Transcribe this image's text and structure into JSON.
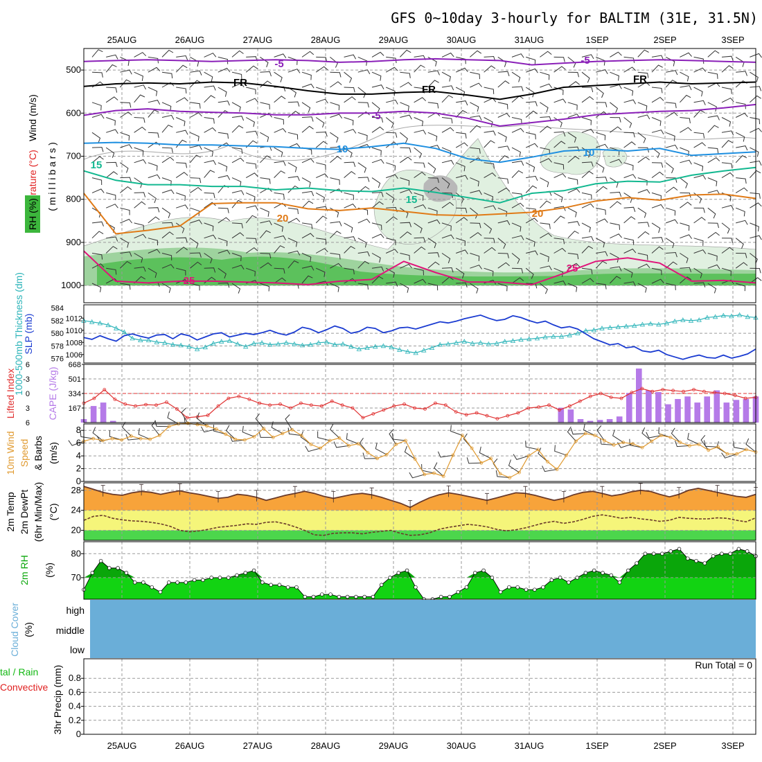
{
  "title": "GFS 0~10day 3-hourly for BALTIM (31E, 31.5N)",
  "dates": [
    "25AUG",
    "26AUG",
    "27AUG",
    "28AUG",
    "29AUG",
    "30AUG",
    "31AUG",
    "1SEP",
    "2SEP",
    "3SEP"
  ],
  "colors": {
    "wind_barb": "#333333",
    "temp_5": "#8a1fb8",
    "temp_fr": "#000000",
    "temp_10": "#1e8fe0",
    "temp_15": "#12b890",
    "temp_20": "#e07a16",
    "temp_25": "#e0147a",
    "rh_light": "#e0f0e0",
    "rh_mid": "#9ed39e",
    "rh_dark": "#5cc15c",
    "slp": "#1a3bd1",
    "thickness": "#2ab3b8",
    "lifted": "#e03030",
    "cape": "#b57ae8",
    "wind10": "#e09a30",
    "temp2m": "#f7a33a",
    "dew2m": "#f5f57a",
    "rh2m": "#12d312",
    "rh2m_dark": "#0aa60a",
    "cloud": "#6aaed8"
  },
  "chart_data": [
    {
      "type": "heatmap",
      "panel": "upper_air",
      "ylabel_parts": [
        "Wind (m/s)",
        "Temperature (°C)",
        "RH (%)",
        "( m i l l i b a r s )"
      ],
      "yticks": [
        "500",
        "600",
        "700",
        "800",
        "900",
        "1000"
      ],
      "ylim": [
        450,
        1040
      ],
      "series": [
        {
          "name": "-5",
          "level_mb": [
            480,
            478,
            476,
            478,
            480,
            478,
            476,
            478,
            482,
            480,
            476,
            474,
            476,
            478,
            488,
            484,
            480,
            478,
            476,
            478,
            480,
            482
          ]
        },
        {
          "name": "FR",
          "level_mb": [
            538,
            532,
            530,
            532,
            528,
            530,
            538,
            548,
            556,
            556,
            552,
            550,
            558,
            568,
            556,
            540,
            536,
            532,
            528,
            532,
            530,
            528
          ]
        },
        {
          "name": "-5",
          "level_mb": [
            605,
            594,
            590,
            596,
            598,
            600,
            604,
            604,
            600,
            600,
            596,
            600,
            612,
            630,
            622,
            614,
            604,
            600,
            596,
            594,
            588,
            580
          ]
        },
        {
          "name": "10",
          "level_mb": [
            670,
            668,
            670,
            674,
            674,
            676,
            678,
            682,
            684,
            678,
            670,
            682,
            706,
            714,
            702,
            688,
            684,
            688,
            682,
            698,
            694,
            690
          ]
        },
        {
          "name": "15",
          "level_mb": [
            734,
            756,
            766,
            766,
            770,
            770,
            778,
            774,
            780,
            782,
            774,
            784,
            796,
            808,
            786,
            780,
            764,
            758,
            760,
            744,
            734,
            726
          ]
        },
        {
          "name": "20",
          "level_mb": [
            786,
            880,
            872,
            862,
            810,
            808,
            808,
            822,
            826,
            820,
            828,
            836,
            838,
            834,
            830,
            820,
            804,
            796,
            802,
            790,
            788,
            798
          ]
        },
        {
          "name": "25",
          "level_mb": [
            920,
            990,
            994,
            990,
            990,
            992,
            994,
            998,
            990,
            986,
            944,
            970,
            992,
            992,
            998,
            972,
            944,
            936,
            948,
            990,
            988,
            994
          ]
        }
      ]
    },
    {
      "type": "line",
      "panel": "slp_thickness",
      "left_label": "1000-500mb Thickness (dm)",
      "right_label": "SLP (mb)",
      "left_ticks": [
        "584",
        "582",
        "580",
        "578",
        "576"
      ],
      "right_ticks": [
        "1012",
        "1010",
        "1008",
        "1006"
      ],
      "thickness_dm": [
        582.0,
        581.8,
        581.6,
        581.3,
        580.8,
        580.2,
        579.2,
        578.9,
        578.9,
        578.6,
        578.5,
        578.2,
        578.1,
        577.9,
        577.5,
        577.8,
        578.4,
        578.7,
        578.8,
        578.3,
        577.9,
        578.4,
        578.5,
        578.2,
        578.3,
        578.5,
        578.3,
        578.1,
        578.2,
        578.5,
        578.6,
        578.2,
        578.3,
        577.9,
        577.5,
        577.7,
        577.9,
        578.0,
        577.8,
        577.4,
        577.1,
        576.9,
        577.3,
        577.7,
        578.2,
        578.3,
        578.5,
        578.7,
        578.4,
        578.5,
        578.3,
        578.4,
        578.7,
        578.8,
        579.0,
        579.1,
        579.2,
        579.4,
        579.5,
        579.5,
        579.7,
        580.0,
        580.4,
        580.5,
        580.8,
        580.9,
        581.0,
        581.1,
        581.2,
        581.4,
        581.5,
        581.4,
        581.6,
        581.9,
        582.1,
        582.0,
        582.1,
        582.5,
        582.6,
        582.8,
        582.7,
        582.9,
        582.6,
        582.5
      ],
      "slp_mb": [
        1008.8,
        1008.5,
        1009.1,
        1008.6,
        1008.2,
        1009.1,
        1009.4,
        1009.0,
        1008.7,
        1009.2,
        1009.3,
        1008.6,
        1009.4,
        1009.1,
        1008.4,
        1008.9,
        1009.4,
        1009.6,
        1008.9,
        1009.2,
        1009.5,
        1009.3,
        1009.6,
        1010.0,
        1009.5,
        1009.2,
        1009.7,
        1010.5,
        1010.2,
        1009.6,
        1010.1,
        1010.7,
        1010.3,
        1009.5,
        1009.8,
        1010.5,
        1010.3,
        1009.6,
        1009.9,
        1010.4,
        1010.5,
        1010.2,
        1010.6,
        1011.0,
        1011.4,
        1011.2,
        1011.5,
        1011.9,
        1012.2,
        1012.5,
        1012.0,
        1011.6,
        1011.8,
        1012.4,
        1012.1,
        1011.6,
        1011.2,
        1011.5,
        1010.9,
        1010.4,
        1010.6,
        1010.2,
        1009.4,
        1008.6,
        1008.1,
        1007.6,
        1007.8,
        1007.1,
        1007.3,
        1006.6,
        1006.4,
        1006.7,
        1006.0,
        1005.6,
        1005.2,
        1005.6,
        1005.9,
        1005.5,
        1005.4,
        1005.9,
        1005.4,
        1005.7,
        1006.1,
        1006.9
      ]
    },
    {
      "type": "bar",
      "panel": "lifted_cape",
      "left_label": "Lifted Index",
      "right_label": "CAPE (J/kg)",
      "left_ticks": [
        "6",
        "-3",
        "0",
        "3",
        "6"
      ],
      "right_ticks": [
        "668",
        "501",
        "334",
        "167"
      ],
      "lifted_index": [
        2.0,
        1.0,
        -0.8,
        1.2,
        2.2,
        2.6,
        2.3,
        2.4,
        1.8,
        3.2,
        5.0,
        4.8,
        4.5,
        2.6,
        1.0,
        0.6,
        1.2,
        2.0,
        2.4,
        2.2,
        3.0,
        2.0,
        2.4,
        2.6,
        1.6,
        2.4,
        3.0,
        5.0,
        4.2,
        3.4,
        2.6,
        2.2,
        3.0,
        3.2,
        2.0,
        2.4,
        3.8,
        4.4,
        4.0,
        4.6,
        5.2,
        4.6,
        4.0,
        3.0,
        2.8,
        2.4,
        3.4,
        2.6,
        1.6,
        0.6,
        0.0,
        0.8,
        1.0,
        -0.2,
        -1.0,
        -0.4,
        -0.8,
        -0.6,
        -0.4,
        -0.8,
        -0.4,
        -0.2,
        0.0,
        0.4,
        1.0,
        0.8
      ],
      "cape_jkg": [
        40,
        190,
        230,
        20,
        0,
        0,
        0,
        0,
        0,
        0,
        0,
        0,
        0,
        0,
        0,
        0,
        0,
        0,
        0,
        0,
        0,
        0,
        0,
        0,
        0,
        0,
        0,
        0,
        0,
        0,
        0,
        0,
        0,
        0,
        0,
        0,
        0,
        0,
        0,
        0,
        0,
        0,
        0,
        0,
        0,
        0,
        0,
        0,
        0,
        170,
        150,
        40,
        20,
        30,
        40,
        70,
        340,
        620,
        370,
        350,
        210,
        270,
        300,
        230,
        300,
        370,
        230,
        260,
        270,
        300
      ]
    },
    {
      "type": "line",
      "panel": "wind10",
      "ylabel": "10m Wind Speed & Barbs (m/s)",
      "yticks": [
        "0",
        "2",
        "4",
        "6",
        "8"
      ],
      "ylim": [
        0,
        9
      ],
      "speed_ms": [
        6.3,
        6.7,
        6.4,
        6.7,
        6.5,
        7.1,
        6.7,
        6.6,
        7.2,
        8.6,
        9.0,
        9.1,
        8.9,
        8.7,
        8.2,
        7.4,
        6.6,
        6.5,
        7.0,
        8.3,
        6.9,
        7.5,
        8.1,
        7.2,
        5.8,
        5.2,
        6.4,
        6.8,
        5.6,
        5.9,
        4.5,
        3.6,
        4.2,
        5.8,
        6.4,
        3.5,
        1.1,
        1.3,
        0.8,
        4.1,
        7.2,
        5.2,
        2.9,
        3.6,
        1.2,
        0.6,
        1.4,
        4.0,
        5.0,
        3.1,
        1.9,
        4.1,
        6.3,
        7.5,
        7.2,
        6.4,
        5.7,
        6.1,
        5.9,
        5.3,
        6.3,
        7.2,
        6.9,
        6.1,
        5.6,
        5.8,
        4.9,
        5.4,
        4.3,
        4.3,
        5.0,
        4.6
      ]
    },
    {
      "type": "area",
      "panel": "temp2m",
      "ylabel": "2m Temp 2m DewPt (6hr Min/Max) (°C)",
      "yticks": [
        "20",
        "24",
        "28"
      ],
      "ylim": [
        18,
        29.5
      ],
      "temp_c": [
        28.8,
        28.2,
        27.6,
        27.2,
        27.0,
        27.5,
        27.8,
        27.6,
        27.2,
        27.6,
        27.9,
        27.5,
        27.2,
        26.8,
        26.4,
        26.6,
        27.2,
        27.0,
        26.6,
        26.0,
        26.5,
        27.0,
        27.4,
        27.8,
        27.4,
        26.8,
        26.4,
        26.8,
        27.2,
        27.4,
        27.1,
        26.6,
        26.0,
        25.4,
        24.6,
        25.6,
        26.5,
        27.1,
        27.5,
        27.2,
        26.8,
        26.4,
        26.0,
        26.5,
        27.0,
        27.5,
        27.4,
        27.0,
        26.5,
        26.0,
        26.4,
        27.1,
        27.6,
        27.8,
        27.4,
        26.9,
        27.2,
        27.7,
        28.0,
        27.8,
        27.2,
        26.7,
        27.2,
        28.0,
        28.4,
        28.0,
        27.6,
        27.2,
        26.8,
        26.6,
        27.2
      ],
      "dew_c": [
        22.0,
        22.8,
        23.0,
        22.4,
        22.1,
        21.9,
        21.8,
        21.6,
        21.3,
        20.8,
        20.0,
        19.7,
        19.9,
        20.2,
        20.6,
        20.8,
        21.0,
        21.3,
        21.2,
        21.6,
        21.7,
        21.3,
        20.7,
        20.0,
        19.1,
        19.0,
        19.4,
        19.5,
        19.5,
        19.3,
        19.6,
        19.8,
        20.0,
        19.4,
        19.0,
        19.1,
        19.5,
        20.2,
        20.6,
        20.9,
        21.2,
        21.0,
        20.7,
        20.2,
        19.9,
        20.1,
        20.5,
        21.0,
        21.5,
        21.8,
        21.4,
        21.7,
        22.2,
        22.8,
        23.1,
        22.8,
        22.4,
        22.6,
        22.3,
        22.1,
        21.8,
        22.0,
        22.6,
        22.4,
        22.3,
        22.3,
        22.5,
        22.4,
        22.0,
        21.7,
        22.5
      ]
    },
    {
      "type": "area",
      "panel": "rh2m",
      "ylabel": "2m RH (%)",
      "yticks": [
        "70",
        "80"
      ],
      "ylim": [
        61,
        85
      ],
      "rh_pct": [
        65,
        72,
        77,
        74,
        74,
        72,
        68,
        68,
        66,
        64,
        68,
        68,
        68,
        69,
        69,
        70,
        70,
        70,
        71,
        72,
        73,
        68,
        67,
        67,
        66,
        66,
        62,
        62,
        63,
        63,
        62,
        62,
        62,
        62,
        62,
        67,
        70,
        72,
        73,
        66,
        61,
        61,
        62,
        62,
        64,
        66,
        72,
        73,
        70,
        64,
        66,
        66,
        65,
        65,
        66,
        69,
        70,
        68,
        70,
        72,
        73,
        72,
        71,
        68,
        73,
        76,
        80,
        80,
        80,
        81,
        82,
        78,
        77,
        76,
        79,
        80,
        80,
        82,
        81,
        79
      ]
    },
    {
      "type": "heatmap",
      "panel": "cloud",
      "ylabel": "Cloud Cover (%)",
      "levels": [
        "high",
        "middle",
        "low"
      ]
    },
    {
      "type": "bar",
      "panel": "precip",
      "ylabel": "3hr Precip (mm)",
      "side_label_1": "tal / Rain",
      "side_label_2": "Convective",
      "run_total": "Run Total = 0",
      "yticks": [
        "0",
        "0.2",
        "0.4",
        "0.6",
        "0.8"
      ],
      "ylim": [
        0,
        1
      ],
      "values": []
    }
  ]
}
